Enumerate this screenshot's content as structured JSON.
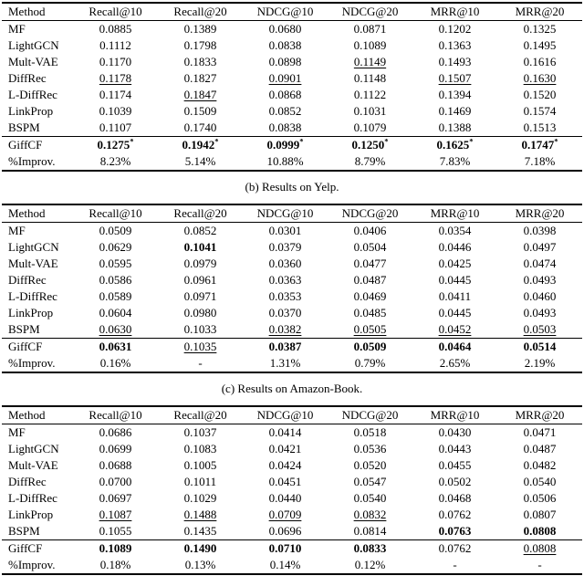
{
  "notation": {
    "significance_marker": "*"
  },
  "tables": [
    {
      "columns": [
        "Method",
        "Recall@10",
        "Recall@20",
        "NDCG@10",
        "NDCG@20",
        "MRR@10",
        "MRR@20"
      ],
      "rows": [
        {
          "method": "MF",
          "values": [
            "0.0885",
            "0.1389",
            "0.0680",
            "0.0871",
            "0.1202",
            "0.1325"
          ]
        },
        {
          "method": "LightGCN",
          "values": [
            "0.1112",
            "0.1798",
            "0.0838",
            "0.1089",
            "0.1363",
            "0.1495"
          ]
        },
        {
          "method": "Mult-VAE",
          "values": [
            "0.1170",
            "0.1833",
            "0.0898",
            "0.1149",
            "0.1493",
            "0.1616"
          ],
          "styles": [
            "",
            "",
            "",
            "u",
            "",
            ""
          ]
        },
        {
          "method": "DiffRec",
          "values": [
            "0.1178",
            "0.1827",
            "0.0901",
            "0.1148",
            "0.1507",
            "0.1630"
          ],
          "styles": [
            "u",
            "",
            "u",
            "",
            "u",
            "u"
          ]
        },
        {
          "method": "L-DiffRec",
          "values": [
            "0.1174",
            "0.1847",
            "0.0868",
            "0.1122",
            "0.1394",
            "0.1520"
          ],
          "styles": [
            "",
            "u",
            "",
            "",
            "",
            ""
          ]
        },
        {
          "method": "LinkProp",
          "values": [
            "0.1039",
            "0.1509",
            "0.0852",
            "0.1031",
            "0.1469",
            "0.1574"
          ]
        },
        {
          "method": "BSPM",
          "values": [
            "0.1107",
            "0.1740",
            "0.0838",
            "0.1079",
            "0.1388",
            "0.1513"
          ]
        },
        {
          "method": "GiffCF",
          "values": [
            "0.1275",
            "0.1942",
            "0.0999",
            "0.1250",
            "0.1625",
            "0.1747"
          ],
          "styles": [
            "b*",
            "b*",
            "b*",
            "b*",
            "b*",
            "b*"
          ],
          "section_start": true
        },
        {
          "method": "%Improv.",
          "values": [
            "8.23%",
            "5.14%",
            "10.88%",
            "8.79%",
            "7.83%",
            "7.18%"
          ]
        }
      ]
    },
    {
      "caption_above": "(b) Results on Yelp.",
      "columns": [
        "Method",
        "Recall@10",
        "Recall@20",
        "NDCG@10",
        "NDCG@20",
        "MRR@10",
        "MRR@20"
      ],
      "rows": [
        {
          "method": "MF",
          "values": [
            "0.0509",
            "0.0852",
            "0.0301",
            "0.0406",
            "0.0354",
            "0.0398"
          ]
        },
        {
          "method": "LightGCN",
          "values": [
            "0.0629",
            "0.1041",
            "0.0379",
            "0.0504",
            "0.0446",
            "0.0497"
          ],
          "styles": [
            "",
            "b",
            "",
            "",
            "",
            ""
          ]
        },
        {
          "method": "Mult-VAE",
          "values": [
            "0.0595",
            "0.0979",
            "0.0360",
            "0.0477",
            "0.0425",
            "0.0474"
          ]
        },
        {
          "method": "DiffRec",
          "values": [
            "0.0586",
            "0.0961",
            "0.0363",
            "0.0487",
            "0.0445",
            "0.0493"
          ]
        },
        {
          "method": "L-DiffRec",
          "values": [
            "0.0589",
            "0.0971",
            "0.0353",
            "0.0469",
            "0.0411",
            "0.0460"
          ]
        },
        {
          "method": "LinkProp",
          "values": [
            "0.0604",
            "0.0980",
            "0.0370",
            "0.0485",
            "0.0445",
            "0.0493"
          ]
        },
        {
          "method": "BSPM",
          "values": [
            "0.0630",
            "0.1033",
            "0.0382",
            "0.0505",
            "0.0452",
            "0.0503"
          ],
          "styles": [
            "u",
            "",
            "u",
            "u",
            "u",
            "u"
          ]
        },
        {
          "method": "GiffCF",
          "values": [
            "0.0631",
            "0.1035",
            "0.0387",
            "0.0509",
            "0.0464",
            "0.0514"
          ],
          "styles": [
            "b",
            "u",
            "b",
            "b",
            "b",
            "b"
          ],
          "section_start": true
        },
        {
          "method": "%Improv.",
          "values": [
            "0.16%",
            "-",
            "1.31%",
            "0.79%",
            "2.65%",
            "2.19%"
          ]
        }
      ]
    },
    {
      "caption_above": "(c) Results on Amazon-Book.",
      "columns": [
        "Method",
        "Recall@10",
        "Recall@20",
        "NDCG@10",
        "NDCG@20",
        "MRR@10",
        "MRR@20"
      ],
      "rows": [
        {
          "method": "MF",
          "values": [
            "0.0686",
            "0.1037",
            "0.0414",
            "0.0518",
            "0.0430",
            "0.0471"
          ]
        },
        {
          "method": "LightGCN",
          "values": [
            "0.0699",
            "0.1083",
            "0.0421",
            "0.0536",
            "0.0443",
            "0.0487"
          ]
        },
        {
          "method": "Mult-VAE",
          "values": [
            "0.0688",
            "0.1005",
            "0.0424",
            "0.0520",
            "0.0455",
            "0.0482"
          ]
        },
        {
          "method": "DiffRec",
          "values": [
            "0.0700",
            "0.1011",
            "0.0451",
            "0.0547",
            "0.0502",
            "0.0540"
          ]
        },
        {
          "method": "L-DiffRec",
          "values": [
            "0.0697",
            "0.1029",
            "0.0440",
            "0.0540",
            "0.0468",
            "0.0506"
          ]
        },
        {
          "method": "LinkProp",
          "values": [
            "0.1087",
            "0.1488",
            "0.0709",
            "0.0832",
            "0.0762",
            "0.0807"
          ],
          "styles": [
            "u",
            "u",
            "u",
            "u",
            "",
            ""
          ]
        },
        {
          "method": "BSPM",
          "values": [
            "0.1055",
            "0.1435",
            "0.0696",
            "0.0814",
            "0.0763",
            "0.0808"
          ],
          "styles": [
            "",
            "",
            "",
            "",
            "b",
            "b"
          ]
        },
        {
          "method": "GiffCF",
          "values": [
            "0.1089",
            "0.1490",
            "0.0710",
            "0.0833",
            "0.0762",
            "0.0808"
          ],
          "styles": [
            "b",
            "b",
            "b",
            "b",
            "",
            "u"
          ],
          "section_start": true
        },
        {
          "method": "%Improv.",
          "values": [
            "0.18%",
            "0.13%",
            "0.14%",
            "0.12%",
            "-",
            "-"
          ]
        }
      ]
    }
  ]
}
